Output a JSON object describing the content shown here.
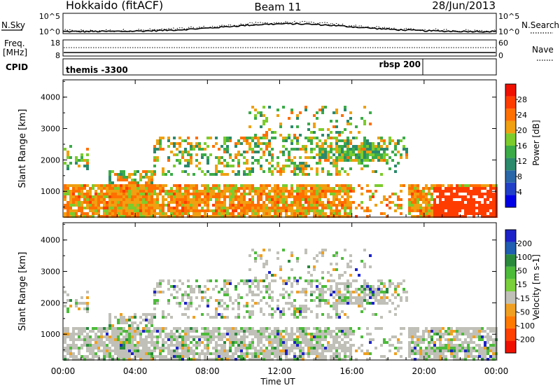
{
  "header": {
    "station": "Hokkaido (fitACF)",
    "beam": "Beam 11",
    "date": "28/Jun/2013"
  },
  "top_panels": {
    "nsky_label": "N.Sky",
    "nsky_ticks": [
      "10^5",
      "10^0"
    ],
    "nsearch_label": "N.Search",
    "nsearch_ticks": [
      "10^5",
      "10^0"
    ],
    "freq_label": "Freq.",
    "freq_unit": "[MHz]",
    "freq_ticks": [
      "18",
      "8"
    ],
    "nave_label": "Nave",
    "nave_ticks": [
      "60",
      "0"
    ],
    "cpid_label": "CPID",
    "cpid_segments": [
      {
        "label": "themis -3300",
        "start_hour": 0
      },
      {
        "label": "rbsp 200",
        "start_hour": 20.6
      }
    ]
  },
  "chart_data": [
    {
      "type": "heatmap",
      "name": "power",
      "ylabel": "Slant Range [km]",
      "ylim": [
        180,
        4550
      ],
      "yticks": [
        1000,
        2000,
        3000,
        4000
      ],
      "xlim": [
        0,
        24
      ],
      "xticks": [
        0,
        4,
        8,
        12,
        16,
        20,
        24
      ],
      "colorbar": {
        "label": "Power [dB]",
        "ticks": [
          4,
          8,
          12,
          16,
          20,
          24,
          28
        ],
        "range": [
          0,
          32
        ],
        "colors": [
          "#0000e6",
          "#2140c8",
          "#2a67a8",
          "#2b8a6b",
          "#3bab48",
          "#7ccc2c",
          "#f0a010",
          "#ff7000",
          "#ff3c00",
          "#f01000"
        ]
      }
    },
    {
      "type": "heatmap",
      "name": "velocity",
      "ylabel": "Slant Range [km]",
      "ylim": [
        180,
        4550
      ],
      "yticks": [
        1000,
        2000,
        3000,
        4000
      ],
      "xlim": [
        0,
        24
      ],
      "xticks": [
        0,
        4,
        8,
        12,
        16,
        20,
        24
      ],
      "colorbar": {
        "label": "Velocity [m s-1]",
        "ticks": [
          200,
          100,
          50,
          15,
          -15,
          -50,
          -100,
          -200
        ],
        "colors": [
          "#1c22c8",
          "#1f5eb0",
          "#2a8a3c",
          "#4dbb3a",
          "#7ad03a",
          "#c0c0b8",
          "#f0a020",
          "#ff7a00",
          "#ff4000",
          "#f01000"
        ]
      }
    }
  ],
  "x_axis": {
    "tick_labels": [
      "00:00",
      "04:00",
      "08:00",
      "12:00",
      "16:00",
      "20:00",
      "00:00"
    ],
    "label": "Time UT"
  }
}
